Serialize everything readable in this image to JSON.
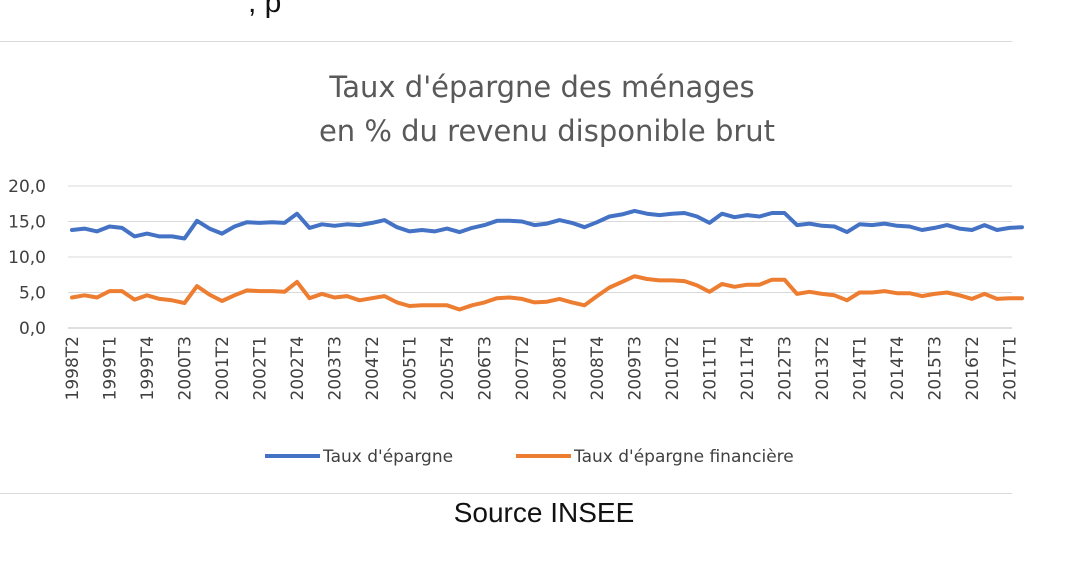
{
  "header": {
    "fragment": ", p"
  },
  "caption": "Source INSEE",
  "chart_data": {
    "type": "line",
    "title": [
      "Taux d'épargne des ménages",
      "en % du revenu disponible brut"
    ],
    "xlabel": "",
    "ylabel": "",
    "ylim": [
      0,
      20
    ],
    "y_ticks": [
      "0,0",
      "5,0",
      "10,0",
      "15,0",
      "20,0"
    ],
    "grid": true,
    "legend_position": "bottom",
    "x": [
      "1998T2",
      "1998T3",
      "1998T4",
      "1999T1",
      "1999T2",
      "1999T3",
      "1999T4",
      "2000T1",
      "2000T2",
      "2000T3",
      "2000T4",
      "2001T1",
      "2001T2",
      "2001T3",
      "2001T4",
      "2002T1",
      "2002T2",
      "2002T3",
      "2002T4",
      "2003T1",
      "2003T2",
      "2003T3",
      "2003T4",
      "2004T1",
      "2004T2",
      "2004T3",
      "2004T4",
      "2005T1",
      "2005T2",
      "2005T3",
      "2005T4",
      "2006T1",
      "2006T2",
      "2006T3",
      "2006T4",
      "2007T1",
      "2007T2",
      "2007T3",
      "2007T4",
      "2008T1",
      "2008T2",
      "2008T3",
      "2008T4",
      "2009T1",
      "2009T2",
      "2009T3",
      "2009T4",
      "2010T1",
      "2010T2",
      "2010T3",
      "2010T4",
      "2011T1",
      "2011T2",
      "2011T3",
      "2011T4",
      "2012T1",
      "2012T2",
      "2012T3",
      "2012T4",
      "2013T1",
      "2013T2",
      "2013T3",
      "2013T4",
      "2014T1",
      "2014T2",
      "2014T3",
      "2014T4",
      "2015T1",
      "2015T2",
      "2015T3",
      "2015T4",
      "2016T1",
      "2016T2",
      "2016T3",
      "2016T4",
      "2017T1",
      "2017T2"
    ],
    "x_tick_labels": [
      "1998T2",
      "1999T1",
      "1999T4",
      "2000T3",
      "2001T2",
      "2002T1",
      "2002T4",
      "2003T3",
      "2004T2",
      "2005T1",
      "2005T4",
      "2006T3",
      "2007T2",
      "2008T1",
      "2008T4",
      "2009T3",
      "2010T2",
      "2011T1",
      "2011T4",
      "2012T3",
      "2013T2",
      "2014T1",
      "2014T4",
      "2015T3",
      "2016T2",
      "2017T1"
    ],
    "series": [
      {
        "name": "Taux d'épargne",
        "color": "#4472c4",
        "values": [
          13.8,
          14.0,
          13.6,
          14.3,
          14.1,
          12.9,
          13.3,
          12.9,
          12.9,
          12.6,
          15.1,
          14.0,
          13.3,
          14.3,
          14.9,
          14.8,
          14.9,
          14.8,
          16.1,
          14.1,
          14.6,
          14.4,
          14.6,
          14.5,
          14.8,
          15.2,
          14.2,
          13.6,
          13.8,
          13.6,
          14.0,
          13.5,
          14.1,
          14.5,
          15.1,
          15.1,
          15.0,
          14.5,
          14.7,
          15.2,
          14.8,
          14.2,
          14.9,
          15.7,
          16.0,
          16.5,
          16.1,
          15.9,
          16.1,
          16.2,
          15.7,
          14.8,
          16.1,
          15.6,
          15.9,
          15.7,
          16.2,
          16.2,
          14.5,
          14.7,
          14.4,
          14.3,
          13.5,
          14.6,
          14.5,
          14.7,
          14.4,
          14.3,
          13.8,
          14.1,
          14.5,
          14.0,
          13.8,
          14.5,
          13.8,
          14.1,
          14.2
        ]
      },
      {
        "name": "Taux d'épargne financière",
        "color": "#ed7d31",
        "values": [
          4.3,
          4.6,
          4.3,
          5.2,
          5.2,
          4.0,
          4.6,
          4.1,
          3.9,
          3.5,
          5.9,
          4.7,
          3.8,
          4.6,
          5.3,
          5.2,
          5.2,
          5.1,
          6.5,
          4.2,
          4.8,
          4.3,
          4.5,
          3.9,
          4.2,
          4.5,
          3.6,
          3.1,
          3.2,
          3.2,
          3.2,
          2.6,
          3.2,
          3.6,
          4.2,
          4.3,
          4.1,
          3.6,
          3.7,
          4.1,
          3.6,
          3.2,
          4.5,
          5.7,
          6.5,
          7.3,
          6.9,
          6.7,
          6.7,
          6.6,
          6.0,
          5.1,
          6.2,
          5.8,
          6.1,
          6.1,
          6.8,
          6.8,
          4.8,
          5.1,
          4.8,
          4.6,
          3.9,
          5.0,
          5.0,
          5.2,
          4.9,
          4.9,
          4.5,
          4.8,
          5.0,
          4.6,
          4.1,
          4.8,
          4.1,
          4.2,
          4.2
        ]
      }
    ]
  }
}
